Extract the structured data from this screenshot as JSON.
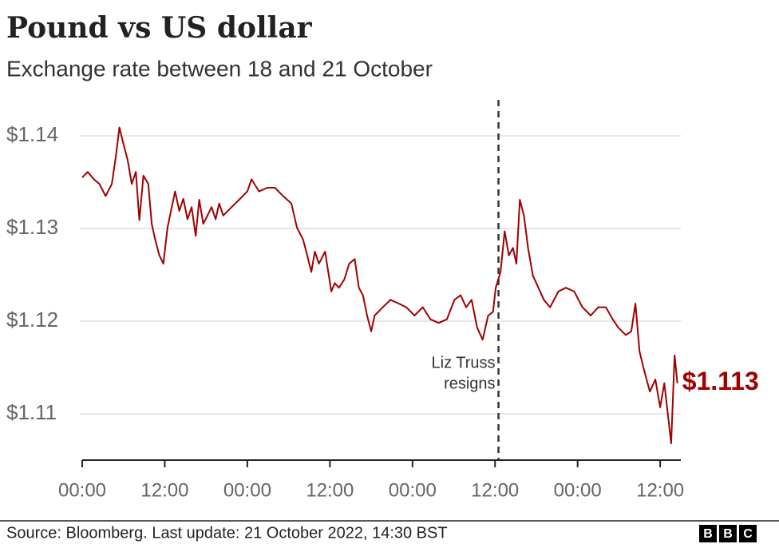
{
  "chart_data": {
    "type": "line",
    "title": "Pound vs US dollar",
    "subtitle": "Exchange rate between 18 and 21 October",
    "color": "#a00000",
    "grid": true,
    "x": [
      0,
      0.8,
      1.7,
      2.5,
      3.4,
      4.3,
      4.9,
      5.4,
      6.0,
      6.6,
      7.2,
      7.8,
      8.3,
      8.9,
      9.6,
      10.1,
      10.6,
      11.2,
      11.8,
      12.4,
      12.9,
      13.5,
      14.1,
      14.7,
      15.3,
      15.9,
      16.5,
      17.0,
      17.6,
      18.2,
      18.8,
      19.4,
      19.9,
      20.5,
      21.7,
      22.8,
      24.0,
      24.6,
      25.7,
      26.9,
      28.0,
      29.2,
      30.4,
      31.2,
      32.1,
      32.7,
      33.3,
      33.8,
      34.4,
      35.3,
      36.2,
      36.7,
      37.3,
      38.1,
      38.8,
      39.6,
      40.2,
      40.8,
      41.4,
      42.0,
      42.5,
      43.7,
      44.8,
      46.0,
      47.1,
      48.3,
      49.5,
      50.6,
      51.8,
      53.0,
      54.1,
      55.0,
      55.8,
      56.6,
      57.4,
      58.2,
      59.0,
      59.7,
      60.1,
      60.8,
      61.4,
      62.0,
      62.6,
      63.1,
      63.6,
      64.2,
      64.8,
      65.5,
      66.3,
      67.1,
      68.0,
      69.2,
      70.3,
      71.5,
      72.7,
      73.9,
      75.0,
      76.1,
      77.1,
      77.9,
      79.0,
      79.8,
      80.4,
      81.0,
      81.7,
      82.5,
      83.3,
      84.0,
      84.6,
      85.2,
      85.6,
      86.1,
      86.5
    ],
    "values": [
      1.1355,
      1.1361,
      1.1353,
      1.1348,
      1.1335,
      1.1348,
      1.1378,
      1.1409,
      1.1391,
      1.1374,
      1.1348,
      1.1361,
      1.1309,
      1.1357,
      1.1348,
      1.1305,
      1.1288,
      1.1271,
      1.1262,
      1.1301,
      1.1319,
      1.134,
      1.1319,
      1.1332,
      1.131,
      1.1323,
      1.1292,
      1.1331,
      1.1305,
      1.1314,
      1.1323,
      1.131,
      1.1327,
      1.1314,
      1.1323,
      1.1331,
      1.134,
      1.1353,
      1.134,
      1.1344,
      1.1344,
      1.1335,
      1.1327,
      1.1301,
      1.1288,
      1.1271,
      1.1253,
      1.1275,
      1.1262,
      1.1275,
      1.1232,
      1.1241,
      1.1236,
      1.1245,
      1.1262,
      1.1267,
      1.1236,
      1.1228,
      1.1206,
      1.1189,
      1.1206,
      1.1215,
      1.1223,
      1.1219,
      1.1215,
      1.1206,
      1.1215,
      1.1202,
      1.1198,
      1.1202,
      1.1223,
      1.1228,
      1.1215,
      1.1223,
      1.1193,
      1.118,
      1.1206,
      1.121,
      1.1236,
      1.1253,
      1.1297,
      1.1271,
      1.1279,
      1.1262,
      1.1331,
      1.1314,
      1.1279,
      1.1249,
      1.1236,
      1.1223,
      1.1215,
      1.1232,
      1.1236,
      1.1232,
      1.1215,
      1.1206,
      1.1215,
      1.1215,
      1.1202,
      1.1193,
      1.1185,
      1.1189,
      1.1219,
      1.1167,
      1.1146,
      1.1124,
      1.1137,
      1.1107,
      1.1133,
      1.1094,
      1.1068,
      1.1163,
      1.1133
    ],
    "end_label": "$1.113",
    "xlim": [
      0,
      87
    ],
    "xticks": [
      {
        "value": 0,
        "label": "00:00"
      },
      {
        "value": 12,
        "label": "12:00"
      },
      {
        "value": 24,
        "label": "00:00"
      },
      {
        "value": 36,
        "label": "12:00"
      },
      {
        "value": 48,
        "label": "00:00"
      },
      {
        "value": 60,
        "label": "12:00"
      },
      {
        "value": 72,
        "label": "00:00"
      },
      {
        "value": 84,
        "label": "12:00"
      }
    ],
    "ylim": [
      1.105,
      1.145
    ],
    "yticks": [
      {
        "value": 1.11,
        "label": "$1.11"
      },
      {
        "value": 1.12,
        "label": "$1.12"
      },
      {
        "value": 1.13,
        "label": "$1.13"
      },
      {
        "value": 1.14,
        "label": "$1.14"
      }
    ],
    "annotation": {
      "lines": [
        "Liz Truss",
        "resigns"
      ],
      "x": 60.5
    },
    "source": "Source: Bloomberg. Last update: 21 October 2022, 14:30 BST",
    "logo": [
      "B",
      "B",
      "C"
    ]
  }
}
